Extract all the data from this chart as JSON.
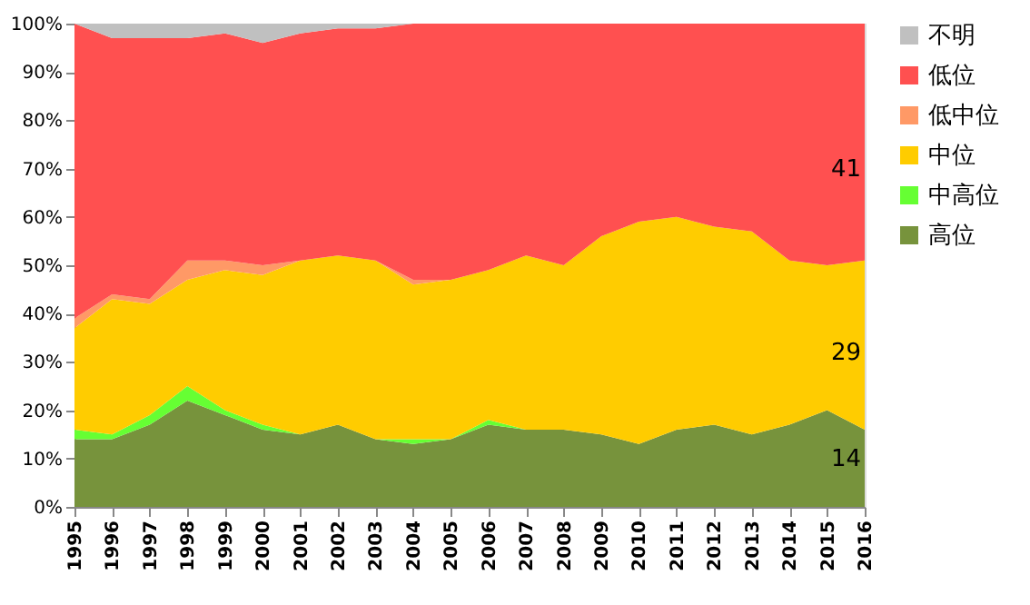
{
  "chart_data": {
    "type": "area",
    "stacked": true,
    "x": [
      1995,
      1996,
      1997,
      1998,
      1999,
      2000,
      2001,
      2002,
      2003,
      2004,
      2005,
      2006,
      2007,
      2008,
      2009,
      2010,
      2011,
      2012,
      2013,
      2014,
      2015,
      2016
    ],
    "series": [
      {
        "name": "高位",
        "color": "#77933c",
        "values": [
          14,
          14,
          17,
          22,
          19,
          16,
          15,
          17,
          14,
          13,
          14,
          17,
          16,
          16,
          15,
          13,
          16,
          17,
          15,
          17,
          20,
          16
        ]
      },
      {
        "name": "中高位",
        "color": "#66ff33",
        "values": [
          2,
          1,
          2,
          3,
          1,
          1,
          0,
          0,
          0,
          1,
          0,
          1,
          0,
          0,
          0,
          0,
          0,
          0,
          0,
          0,
          0,
          0
        ]
      },
      {
        "name": "中位",
        "color": "#ffcc00",
        "values": [
          21,
          28,
          23,
          22,
          29,
          31,
          36,
          35,
          37,
          32,
          33,
          31,
          36,
          34,
          41,
          46,
          44,
          41,
          42,
          34,
          30,
          35
        ]
      },
      {
        "name": "低中位",
        "color": "#ff9966",
        "values": [
          2,
          1,
          1,
          4,
          2,
          2,
          0,
          0,
          0,
          1,
          0,
          0,
          0,
          0,
          0,
          0,
          0,
          0,
          0,
          0,
          0,
          0
        ]
      },
      {
        "name": "低位",
        "color": "#ff5050",
        "values": [
          61,
          53,
          54,
          46,
          47,
          46,
          47,
          47,
          48,
          53,
          53,
          51,
          48,
          50,
          44,
          41,
          40,
          42,
          43,
          49,
          50,
          49
        ]
      },
      {
        "name": "不明",
        "color": "#c0c0c0",
        "values": [
          0,
          3,
          3,
          3,
          2,
          4,
          2,
          1,
          1,
          0,
          0,
          0,
          0,
          0,
          0,
          0,
          0,
          0,
          0,
          0,
          0,
          0
        ]
      }
    ],
    "xlim": [
      1995,
      2016
    ],
    "xticks": [
      1995,
      1996,
      1997,
      1998,
      1999,
      2000,
      2001,
      2002,
      2003,
      2004,
      2005,
      2006,
      2007,
      2008,
      2009,
      2010,
      2011,
      2012,
      2013,
      2014,
      2015,
      2016
    ],
    "ylim": [
      0,
      100
    ],
    "yticks": [
      {
        "value": 0,
        "label": "0%"
      },
      {
        "value": 10,
        "label": "10%"
      },
      {
        "value": 20,
        "label": "20%"
      },
      {
        "value": 30,
        "label": "30%"
      },
      {
        "value": 40,
        "label": "40%"
      },
      {
        "value": 50,
        "label": "50%"
      },
      {
        "value": 60,
        "label": "60%"
      },
      {
        "value": 70,
        "label": "70%"
      },
      {
        "value": 80,
        "label": "80%"
      },
      {
        "value": 90,
        "label": "90%"
      },
      {
        "value": 100,
        "label": "100%"
      }
    ],
    "grid": false,
    "legend": "right",
    "annotations": [
      "41",
      "29",
      "14"
    ]
  }
}
